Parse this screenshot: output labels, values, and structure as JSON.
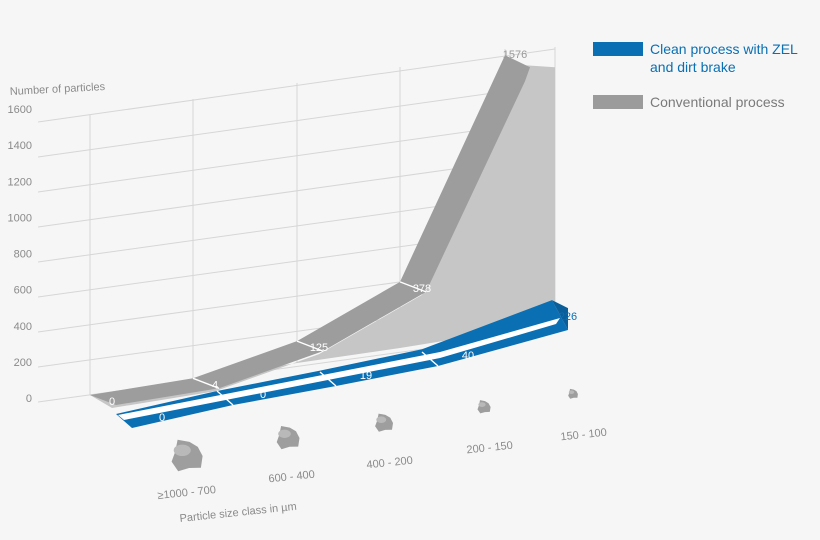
{
  "chart_data": {
    "type": "area",
    "ylabel": "Number of particles",
    "xlabel": "Particle size class in µm",
    "ylim": [
      0,
      1600
    ],
    "yticks": [
      0,
      200,
      400,
      600,
      800,
      1000,
      1200,
      1400,
      1600
    ],
    "categories": [
      "≥1000 - 700",
      "600 - 400",
      "400 - 200",
      "200 - 150",
      "150 - 100"
    ],
    "grid": true,
    "legend_position": "top-right",
    "series": [
      {
        "name": "Conventional process",
        "values": [
          0,
          4,
          125,
          378,
          1576
        ],
        "color": "#9b9b9b"
      },
      {
        "name": "Clean process with ZEL and dirt brake",
        "values": [
          0,
          0,
          19,
          40,
          226
        ],
        "color": "#0a6fb3"
      }
    ]
  },
  "legend": {
    "items": [
      {
        "label_line1": "Clean process with ZEL",
        "label_line2": "and dirt brake",
        "color": "#0a6fb3"
      },
      {
        "label_line1": "Conventional process",
        "label_line2": "",
        "color": "#9b9b9b"
      }
    ]
  },
  "icons": [
    "particle-icon"
  ]
}
